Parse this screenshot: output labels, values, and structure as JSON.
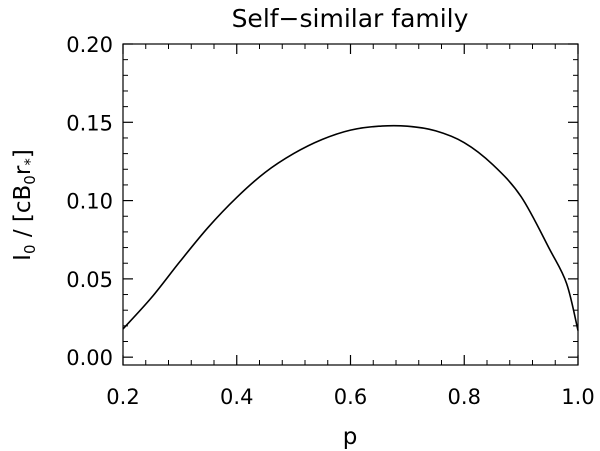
{
  "chart_data": {
    "type": "line",
    "title": "Self−similar family",
    "xlabel": "p",
    "ylabel": {
      "main": "I",
      "main_sub": "0",
      "mid": " / [cB",
      "mid_sub": "0",
      "r": "r",
      "r_sub": "*",
      "close": "]"
    },
    "xlim": [
      0.2,
      1.0
    ],
    "ylim": [
      -0.005,
      0.2
    ],
    "x_ticks": [
      0.2,
      0.4,
      0.6,
      0.8,
      1.0
    ],
    "x_tick_labels": [
      "0.2",
      "0.4",
      "0.6",
      "0.8",
      "1.0"
    ],
    "y_ticks": [
      0.0,
      0.05,
      0.1,
      0.15,
      0.2
    ],
    "y_tick_labels": [
      "0.00",
      "0.05",
      "0.10",
      "0.15",
      "0.20"
    ],
    "grid": false,
    "series": [
      {
        "color": "#000000",
        "x": [
          0.2,
          0.25,
          0.3,
          0.35,
          0.4,
          0.45,
          0.5,
          0.55,
          0.6,
          0.65,
          0.7,
          0.75,
          0.8,
          0.85,
          0.9,
          0.95,
          0.98,
          1.0
        ],
        "y": [
          0.018,
          0.038,
          0.061,
          0.083,
          0.102,
          0.118,
          0.13,
          0.139,
          0.145,
          0.1475,
          0.1475,
          0.1445,
          0.137,
          0.123,
          0.1025,
          0.069,
          0.047,
          0.017
        ]
      }
    ]
  }
}
